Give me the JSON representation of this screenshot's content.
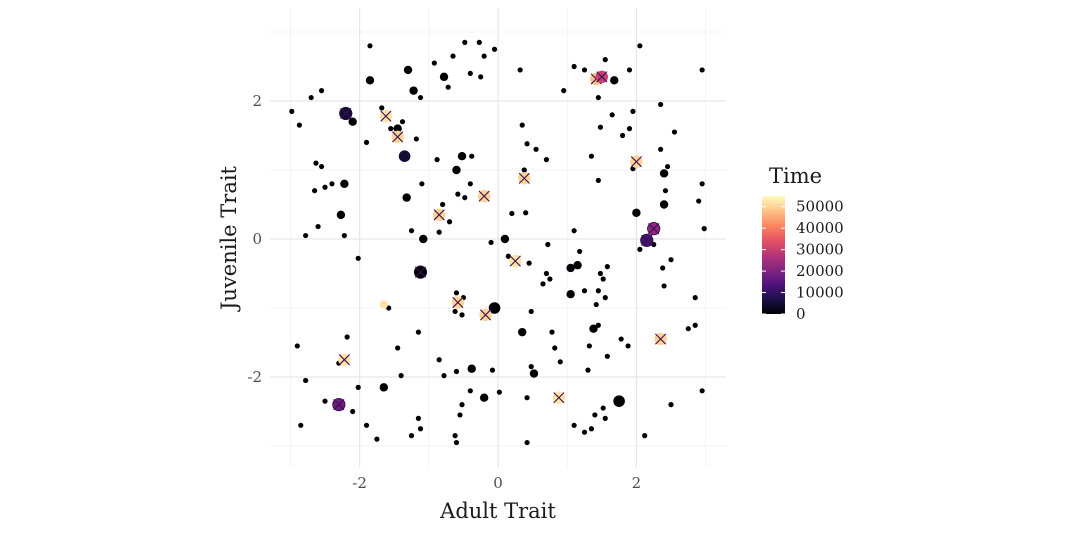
{
  "chart_data": {
    "type": "scatter",
    "title": "",
    "xlabel": "Adult Trait",
    "ylabel": "Juvenile Trait",
    "xlim": [
      -3.2,
      3.2
    ],
    "ylim": [
      -3.2,
      3.2
    ],
    "x_ticks": [
      -2,
      0,
      2
    ],
    "x_tick_labels": [
      "-2",
      "0",
      "2"
    ],
    "y_ticks": [
      -2,
      0,
      2
    ],
    "y_tick_labels": [
      "-2",
      "0",
      "2"
    ],
    "grid": true,
    "legend": {
      "title": "Time",
      "placement": "right",
      "min": 0,
      "max": 55000,
      "breaks": [
        0,
        10000,
        20000,
        30000,
        40000,
        50000
      ],
      "labels": [
        "0",
        "10000",
        "20000",
        "30000",
        "40000",
        "50000"
      ],
      "palette": [
        "#000004",
        "#1d1147",
        "#51127c",
        "#822681",
        "#b63679",
        "#e65164",
        "#fb8861",
        "#fec287",
        "#fcfdbf"
      ]
    },
    "points": [
      {
        "x": -2.98,
        "y": 1.85,
        "time": 0,
        "size": 1
      },
      {
        "x": -2.87,
        "y": 1.65,
        "time": 0,
        "size": 1
      },
      {
        "x": -2.7,
        "y": 2.05,
        "time": 0,
        "size": 1
      },
      {
        "x": -2.55,
        "y": 2.15,
        "time": 0,
        "size": 1
      },
      {
        "x": -2.63,
        "y": 1.1,
        "time": 0,
        "size": 1
      },
      {
        "x": -2.55,
        "y": 1.05,
        "time": 0,
        "size": 1
      },
      {
        "x": -2.5,
        "y": 0.75,
        "time": 0,
        "size": 1
      },
      {
        "x": -2.4,
        "y": 0.8,
        "time": 0,
        "size": 1
      },
      {
        "x": -2.65,
        "y": 0.7,
        "time": 0,
        "size": 1
      },
      {
        "x": -2.78,
        "y": 0.05,
        "time": 0,
        "size": 1
      },
      {
        "x": -2.6,
        "y": 0.18,
        "time": 0,
        "size": 1
      },
      {
        "x": -2.22,
        "y": 0.8,
        "time": 0,
        "size": 2
      },
      {
        "x": -2.27,
        "y": 0.35,
        "time": 0,
        "size": 2
      },
      {
        "x": -2.22,
        "y": 0.05,
        "time": 0,
        "size": 1
      },
      {
        "x": -2.02,
        "y": -0.28,
        "time": 0,
        "size": 1
      },
      {
        "x": -2.1,
        "y": 1.7,
        "time": 0,
        "size": 2
      },
      {
        "x": -1.85,
        "y": 2.8,
        "time": 0,
        "size": 1
      },
      {
        "x": -1.85,
        "y": 2.3,
        "time": 0,
        "size": 2
      },
      {
        "x": -1.9,
        "y": 1.4,
        "time": 0,
        "size": 1
      },
      {
        "x": -2.9,
        "y": -1.55,
        "time": 0,
        "size": 1
      },
      {
        "x": -2.78,
        "y": -2.05,
        "time": 0,
        "size": 1
      },
      {
        "x": -2.85,
        "y": -2.7,
        "time": 0,
        "size": 1
      },
      {
        "x": -2.5,
        "y": -2.35,
        "time": 0,
        "size": 1
      },
      {
        "x": -2.35,
        "y": -2.4,
        "time": 0,
        "size": 1
      },
      {
        "x": -2.3,
        "y": -1.8,
        "time": 0,
        "size": 1
      },
      {
        "x": -2.18,
        "y": -1.42,
        "time": 0,
        "size": 1
      },
      {
        "x": -2.1,
        "y": -2.5,
        "time": 0,
        "size": 1
      },
      {
        "x": -2.02,
        "y": -2.15,
        "time": 0,
        "size": 1
      },
      {
        "x": -1.9,
        "y": -2.7,
        "time": 0,
        "size": 1
      },
      {
        "x": -1.75,
        "y": -2.9,
        "time": 0,
        "size": 1
      },
      {
        "x": -1.65,
        "y": -2.15,
        "time": 0,
        "size": 2
      },
      {
        "x": -1.68,
        "y": 1.9,
        "time": 0,
        "size": 1
      },
      {
        "x": -1.55,
        "y": 1.6,
        "time": 0,
        "size": 1
      },
      {
        "x": -1.45,
        "y": 1.6,
        "time": 0,
        "size": 2
      },
      {
        "x": -1.38,
        "y": 1.7,
        "time": 0,
        "size": 1
      },
      {
        "x": -1.35,
        "y": 1.2,
        "time": 5000,
        "size": 3
      },
      {
        "x": -1.3,
        "y": 2.45,
        "time": 0,
        "size": 2
      },
      {
        "x": -1.22,
        "y": 2.15,
        "time": 0,
        "size": 2
      },
      {
        "x": -1.12,
        "y": 2.05,
        "time": 0,
        "size": 1
      },
      {
        "x": -1.18,
        "y": 1.45,
        "time": 0,
        "size": 1
      },
      {
        "x": -1.32,
        "y": 0.6,
        "time": 0,
        "size": 2
      },
      {
        "x": -1.1,
        "y": 0.8,
        "time": 0,
        "size": 1
      },
      {
        "x": -1.25,
        "y": 0.12,
        "time": 0,
        "size": 1
      },
      {
        "x": -1.08,
        "y": 0.0,
        "time": 0,
        "size": 2
      },
      {
        "x": -1.58,
        "y": -1.0,
        "time": 0,
        "size": 1
      },
      {
        "x": -1.45,
        "y": -1.58,
        "time": 0,
        "size": 1
      },
      {
        "x": -1.4,
        "y": -1.98,
        "time": 0,
        "size": 1
      },
      {
        "x": -1.15,
        "y": -1.35,
        "time": 0,
        "size": 1
      },
      {
        "x": -1.15,
        "y": -2.6,
        "time": 0,
        "size": 1
      },
      {
        "x": -1.12,
        "y": -2.75,
        "time": 0,
        "size": 1
      },
      {
        "x": -1.25,
        "y": -2.85,
        "time": 0,
        "size": 1
      },
      {
        "x": -0.92,
        "y": 2.55,
        "time": 0,
        "size": 1
      },
      {
        "x": -0.78,
        "y": 2.35,
        "time": 0,
        "size": 2
      },
      {
        "x": -0.72,
        "y": 2.2,
        "time": 0,
        "size": 1
      },
      {
        "x": -0.65,
        "y": 2.65,
        "time": 0,
        "size": 1
      },
      {
        "x": -0.48,
        "y": 2.85,
        "time": 0,
        "size": 1
      },
      {
        "x": -0.4,
        "y": 2.4,
        "time": 0,
        "size": 1
      },
      {
        "x": -0.25,
        "y": 2.35,
        "time": 0,
        "size": 1
      },
      {
        "x": -0.2,
        "y": 2.65,
        "time": 0,
        "size": 1
      },
      {
        "x": -0.27,
        "y": 2.85,
        "time": 0,
        "size": 1
      },
      {
        "x": -0.05,
        "y": 2.75,
        "time": 0,
        "size": 1
      },
      {
        "x": -0.88,
        "y": 1.15,
        "time": 0,
        "size": 1
      },
      {
        "x": -0.6,
        "y": 1.0,
        "time": 0,
        "size": 2
      },
      {
        "x": -0.52,
        "y": 1.2,
        "time": 0,
        "size": 2
      },
      {
        "x": -0.38,
        "y": 1.2,
        "time": 0,
        "size": 1
      },
      {
        "x": -0.4,
        "y": 0.8,
        "time": 0,
        "size": 1
      },
      {
        "x": -0.58,
        "y": 0.65,
        "time": 0,
        "size": 1
      },
      {
        "x": -0.48,
        "y": 0.6,
        "time": 0,
        "size": 1
      },
      {
        "x": -0.8,
        "y": 0.5,
        "time": 0,
        "size": 1
      },
      {
        "x": -0.7,
        "y": 0.25,
        "time": 0,
        "size": 1
      },
      {
        "x": -0.85,
        "y": 0.1,
        "time": 0,
        "size": 1
      },
      {
        "x": -0.6,
        "y": -0.78,
        "time": 0,
        "size": 1
      },
      {
        "x": -0.62,
        "y": -1.05,
        "time": 0,
        "size": 1
      },
      {
        "x": -0.52,
        "y": -1.1,
        "time": 0,
        "size": 1
      },
      {
        "x": -0.5,
        "y": -0.85,
        "time": 0,
        "size": 1
      },
      {
        "x": -0.85,
        "y": -1.75,
        "time": 0,
        "size": 1
      },
      {
        "x": -0.78,
        "y": -1.98,
        "time": 0,
        "size": 1
      },
      {
        "x": -0.6,
        "y": -1.92,
        "time": 0,
        "size": 1
      },
      {
        "x": -0.38,
        "y": -1.88,
        "time": 0,
        "size": 2
      },
      {
        "x": -0.4,
        "y": -2.2,
        "time": 0,
        "size": 1
      },
      {
        "x": -0.52,
        "y": -2.4,
        "time": 0,
        "size": 1
      },
      {
        "x": -0.55,
        "y": -2.55,
        "time": 0,
        "size": 1
      },
      {
        "x": -0.62,
        "y": -2.85,
        "time": 0,
        "size": 1
      },
      {
        "x": -0.6,
        "y": -2.95,
        "time": 0,
        "size": 1
      },
      {
        "x": -0.2,
        "y": -2.3,
        "time": 0,
        "size": 2
      },
      {
        "x": -0.08,
        "y": -1.9,
        "time": 0,
        "size": 1
      },
      {
        "x": -0.05,
        "y": -1.0,
        "time": 0,
        "size": 3
      },
      {
        "x": -0.1,
        "y": -0.05,
        "time": 0,
        "size": 1
      },
      {
        "x": 0.02,
        "y": -2.22,
        "time": 0,
        "size": 1
      },
      {
        "x": 0.1,
        "y": 0.0,
        "time": 0,
        "size": 2
      },
      {
        "x": 0.2,
        "y": 0.37,
        "time": 0,
        "size": 1
      },
      {
        "x": 0.4,
        "y": 0.38,
        "time": 0,
        "size": 1
      },
      {
        "x": 0.15,
        "y": -0.25,
        "time": 0,
        "size": 1
      },
      {
        "x": 0.45,
        "y": -0.35,
        "time": 0,
        "size": 1
      },
      {
        "x": 0.48,
        "y": -1.05,
        "time": 0,
        "size": 1
      },
      {
        "x": 0.35,
        "y": -1.35,
        "time": 0,
        "size": 2
      },
      {
        "x": 0.42,
        "y": -2.3,
        "time": 0,
        "size": 1
      },
      {
        "x": 0.48,
        "y": -1.85,
        "time": 0,
        "size": 1
      },
      {
        "x": 0.52,
        "y": -1.95,
        "time": 0,
        "size": 2
      },
      {
        "x": 0.42,
        "y": -2.95,
        "time": 0,
        "size": 1
      },
      {
        "x": 0.32,
        "y": 2.45,
        "time": 0,
        "size": 1
      },
      {
        "x": 0.35,
        "y": 1.65,
        "time": 0,
        "size": 1
      },
      {
        "x": 0.42,
        "y": 1.38,
        "time": 0,
        "size": 1
      },
      {
        "x": 0.55,
        "y": 1.3,
        "time": 0,
        "size": 1
      },
      {
        "x": 0.38,
        "y": 1.0,
        "time": 0,
        "size": 1
      },
      {
        "x": 0.7,
        "y": 1.15,
        "time": 0,
        "size": 1
      },
      {
        "x": 0.7,
        "y": -0.5,
        "time": 0,
        "size": 1
      },
      {
        "x": 0.65,
        "y": -0.65,
        "time": 0,
        "size": 1
      },
      {
        "x": 0.75,
        "y": -0.58,
        "time": 0,
        "size": 1
      },
      {
        "x": 0.72,
        "y": -0.08,
        "time": 0,
        "size": 1
      },
      {
        "x": 0.78,
        "y": -1.35,
        "time": 0,
        "size": 1
      },
      {
        "x": 0.82,
        "y": -1.58,
        "time": 0,
        "size": 1
      },
      {
        "x": 0.9,
        "y": -1.78,
        "time": 0,
        "size": 1
      },
      {
        "x": 0.95,
        "y": 2.15,
        "time": 0,
        "size": 1
      },
      {
        "x": 1.1,
        "y": 2.5,
        "time": 0,
        "size": 1
      },
      {
        "x": 1.25,
        "y": 2.45,
        "time": 0,
        "size": 1
      },
      {
        "x": 1.1,
        "y": 0.12,
        "time": 0,
        "size": 1
      },
      {
        "x": 1.05,
        "y": -0.42,
        "time": 0,
        "size": 2
      },
      {
        "x": 1.15,
        "y": -0.38,
        "time": 0,
        "size": 2
      },
      {
        "x": 1.18,
        "y": -0.18,
        "time": 0,
        "size": 1
      },
      {
        "x": 1.05,
        "y": -0.8,
        "time": 0,
        "size": 2
      },
      {
        "x": 1.25,
        "y": -0.75,
        "time": 0,
        "size": 1
      },
      {
        "x": 1.1,
        "y": -2.7,
        "time": 0,
        "size": 1
      },
      {
        "x": 1.25,
        "y": -2.8,
        "time": 0,
        "size": 1
      },
      {
        "x": 1.35,
        "y": -2.75,
        "time": 0,
        "size": 1
      },
      {
        "x": 1.4,
        "y": -2.55,
        "time": 0,
        "size": 1
      },
      {
        "x": 1.38,
        "y": -1.3,
        "time": 0,
        "size": 2
      },
      {
        "x": 1.32,
        "y": -1.55,
        "time": 0,
        "size": 1
      },
      {
        "x": 1.3,
        "y": -1.9,
        "time": 0,
        "size": 1
      },
      {
        "x": 1.45,
        "y": -1.25,
        "time": 0,
        "size": 1
      },
      {
        "x": 1.45,
        "y": -0.75,
        "time": 0,
        "size": 1
      },
      {
        "x": 1.42,
        "y": -0.95,
        "time": 0,
        "size": 1
      },
      {
        "x": 1.55,
        "y": -0.85,
        "time": 0,
        "size": 1
      },
      {
        "x": 1.52,
        "y": -0.58,
        "time": 0,
        "size": 1
      },
      {
        "x": 1.48,
        "y": -0.5,
        "time": 0,
        "size": 1
      },
      {
        "x": 1.58,
        "y": -0.4,
        "time": 0,
        "size": 1
      },
      {
        "x": 1.58,
        "y": -1.7,
        "time": 0,
        "size": 1
      },
      {
        "x": 1.52,
        "y": -2.45,
        "time": 0,
        "size": 1
      },
      {
        "x": 1.55,
        "y": -2.6,
        "time": 0,
        "size": 1
      },
      {
        "x": 1.75,
        "y": -2.35,
        "time": 0,
        "size": 3
      },
      {
        "x": 1.78,
        "y": -1.45,
        "time": 0,
        "size": 1
      },
      {
        "x": 1.88,
        "y": -1.55,
        "time": 0,
        "size": 1
      },
      {
        "x": 2.12,
        "y": -2.85,
        "time": 0,
        "size": 1
      },
      {
        "x": 1.45,
        "y": 2.05,
        "time": 0,
        "size": 1
      },
      {
        "x": 1.48,
        "y": 1.62,
        "time": 0,
        "size": 1
      },
      {
        "x": 1.35,
        "y": 1.2,
        "time": 0,
        "size": 1
      },
      {
        "x": 1.45,
        "y": 0.85,
        "time": 0,
        "size": 1
      },
      {
        "x": 1.55,
        "y": 2.6,
        "time": 0,
        "size": 1
      },
      {
        "x": 1.68,
        "y": 2.3,
        "time": 0,
        "size": 2
      },
      {
        "x": 1.65,
        "y": 1.8,
        "time": 0,
        "size": 1
      },
      {
        "x": 1.8,
        "y": 1.5,
        "time": 0,
        "size": 1
      },
      {
        "x": 1.9,
        "y": 2.45,
        "time": 0,
        "size": 1
      },
      {
        "x": 1.9,
        "y": 1.6,
        "time": 0,
        "size": 1
      },
      {
        "x": 1.95,
        "y": 1.85,
        "time": 0,
        "size": 1
      },
      {
        "x": 2.05,
        "y": 2.8,
        "time": 0,
        "size": 1
      },
      {
        "x": 1.95,
        "y": 1.02,
        "time": 0,
        "size": 1
      },
      {
        "x": 2.0,
        "y": 0.38,
        "time": 0,
        "size": 2
      },
      {
        "x": 2.05,
        "y": -0.15,
        "time": 0,
        "size": 1
      },
      {
        "x": 2.25,
        "y": -0.08,
        "time": 0,
        "size": 1
      },
      {
        "x": 2.35,
        "y": 1.95,
        "time": 0,
        "size": 1
      },
      {
        "x": 2.35,
        "y": 1.3,
        "time": 0,
        "size": 1
      },
      {
        "x": 2.4,
        "y": 0.95,
        "time": 0,
        "size": 2
      },
      {
        "x": 2.42,
        "y": 0.7,
        "time": 0,
        "size": 1
      },
      {
        "x": 2.4,
        "y": 0.5,
        "time": 0,
        "size": 2
      },
      {
        "x": 2.45,
        "y": 1.05,
        "time": 0,
        "size": 1
      },
      {
        "x": 2.38,
        "y": -0.42,
        "time": 0,
        "size": 1
      },
      {
        "x": 2.4,
        "y": -0.68,
        "time": 0,
        "size": 1
      },
      {
        "x": 2.5,
        "y": -0.3,
        "time": 0,
        "size": 1
      },
      {
        "x": 2.5,
        "y": -2.4,
        "time": 0,
        "size": 1
      },
      {
        "x": 2.55,
        "y": 1.55,
        "time": 0,
        "size": 1
      },
      {
        "x": 2.75,
        "y": -1.3,
        "time": 0,
        "size": 1
      },
      {
        "x": 2.85,
        "y": -1.25,
        "time": 0,
        "size": 1
      },
      {
        "x": 2.85,
        "y": -0.85,
        "time": 0,
        "size": 1
      },
      {
        "x": 2.9,
        "y": 0.55,
        "time": 0,
        "size": 1
      },
      {
        "x": 2.95,
        "y": 0.8,
        "time": 0,
        "size": 1
      },
      {
        "x": 2.98,
        "y": 0.15,
        "time": 0,
        "size": 1
      },
      {
        "x": 2.95,
        "y": 2.45,
        "time": 0,
        "size": 1
      },
      {
        "x": 2.95,
        "y": -2.2,
        "time": 0,
        "size": 1
      },
      {
        "x": -0.18,
        "y": 0.62,
        "time": 50000,
        "size": 2
      },
      {
        "x": -1.65,
        "y": -0.95,
        "time": 52000,
        "size": 2
      }
    ],
    "highlighted": [
      {
        "x": -2.2,
        "y": 1.82,
        "time": 5000
      },
      {
        "x": -1.62,
        "y": 1.78,
        "time": 52000
      },
      {
        "x": -1.45,
        "y": 1.48,
        "time": 50000
      },
      {
        "x": -0.85,
        "y": 0.35,
        "time": 50000
      },
      {
        "x": -0.2,
        "y": 0.62,
        "time": 50000
      },
      {
        "x": 0.38,
        "y": 0.88,
        "time": 50000
      },
      {
        "x": -1.12,
        "y": -0.48,
        "time": 0
      },
      {
        "x": -0.58,
        "y": -0.92,
        "time": 50000
      },
      {
        "x": -0.18,
        "y": -1.1,
        "time": 50000
      },
      {
        "x": 0.25,
        "y": -0.32,
        "time": 52000
      },
      {
        "x": 2.0,
        "y": 1.12,
        "time": 50000
      },
      {
        "x": 2.15,
        "y": -0.02,
        "time": 12000
      },
      {
        "x": 2.25,
        "y": 0.15,
        "time": 22000
      },
      {
        "x": 1.42,
        "y": 2.32,
        "time": 48000
      },
      {
        "x": 1.5,
        "y": 2.35,
        "time": 30000
      },
      {
        "x": -2.22,
        "y": -1.75,
        "time": 52000
      },
      {
        "x": -2.3,
        "y": -2.4,
        "time": 18000
      },
      {
        "x": 0.88,
        "y": -2.3,
        "time": 52000
      },
      {
        "x": 2.35,
        "y": -1.45,
        "time": 50000
      }
    ]
  }
}
